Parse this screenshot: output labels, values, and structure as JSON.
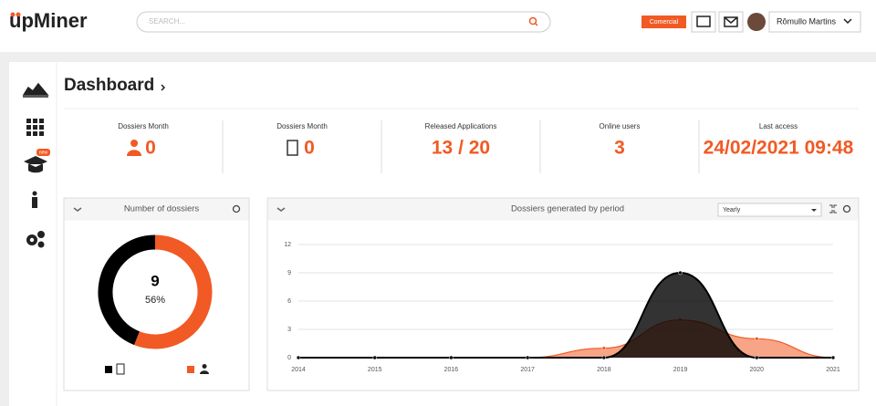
{
  "header": {
    "logo": "upMiner",
    "search_placeholder": "SEARCH...",
    "badge": "Comercial",
    "user_name": "Rômullo Martins"
  },
  "sidebar": {
    "badge": "new"
  },
  "page": {
    "title": "Dashboard"
  },
  "stats": [
    {
      "label": "Dossiers Month",
      "value": 0
    },
    {
      "label": "Dossiers Month",
      "value": 0
    },
    {
      "label": "Released Applications",
      "value": "13 / 20"
    },
    {
      "label": "Online users",
      "value": 3
    },
    {
      "label": "Last access",
      "value": "24/02/2021 09:48"
    }
  ],
  "chart_data": [
    {
      "type": "pie",
      "title": "Number of dossiers",
      "values": [
        56,
        44
      ],
      "value_labels": [
        "56%",
        null
      ],
      "total": 9,
      "colors": [
        "#f15a24",
        "#000000"
      ]
    },
    {
      "type": "area",
      "title": "Dossiers generated by period",
      "period": "Yearly",
      "x": [
        2014,
        2015,
        2016,
        2017,
        2018,
        2019,
        2020,
        2021
      ],
      "xlim": [
        2014,
        2021
      ],
      "xticks": [
        2014,
        2015,
        2016,
        2017,
        2018,
        2019,
        2020,
        2021
      ],
      "ylim": [
        0,
        12
      ],
      "yticks": [
        0,
        3,
        6,
        9,
        12
      ],
      "grid": true,
      "series": [
        {
          "color": "#f15a24",
          "values": [
            0,
            0,
            0,
            0,
            1,
            4,
            2,
            0
          ]
        },
        {
          "color": "#000000",
          "values": [
            0,
            0,
            0,
            0,
            0,
            9,
            0,
            0
          ]
        }
      ]
    }
  ]
}
